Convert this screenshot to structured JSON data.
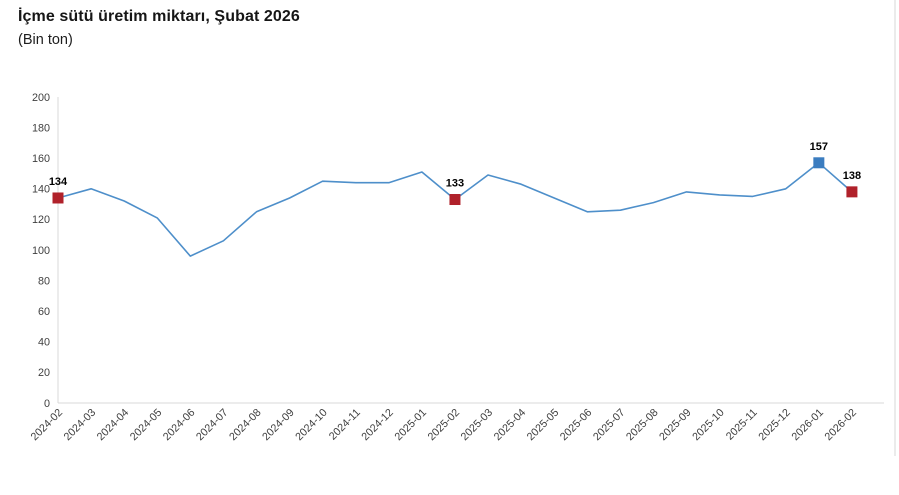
{
  "header": {
    "title": "İçme sütü üretim miktarı, Şubat 2026",
    "subtitle": "(Bin ton)"
  },
  "chart_data": {
    "type": "line",
    "title": "İçme sütü üretim miktarı, Şubat 2026",
    "subtitle": "(Bin ton)",
    "x": [
      "2024-02",
      "2024-03",
      "2024-04",
      "2024-05",
      "2024-06",
      "2024-07",
      "2024-08",
      "2024-09",
      "2024-10",
      "2024-11",
      "2024-12",
      "2025-01",
      "2025-02",
      "2025-03",
      "2025-04",
      "2025-05",
      "2025-06",
      "2025-07",
      "2025-08",
      "2025-09",
      "2025-10",
      "2025-11",
      "2025-12",
      "2026-01",
      "2026-02"
    ],
    "series": [
      {
        "name": "İçme sütü üretim miktarı (Bin ton)",
        "values": [
          134,
          140,
          132,
          121,
          96,
          106,
          125,
          134,
          145,
          144,
          144,
          151,
          133,
          149,
          143,
          134,
          125,
          126,
          131,
          138,
          136,
          135,
          140,
          157,
          138
        ]
      }
    ],
    "ylim": [
      0,
      200
    ],
    "ytick_step": 20,
    "grid": false,
    "legend_position": "none",
    "annotated_points": [
      {
        "x": "2024-02",
        "value": 134,
        "label": "134",
        "marker_color": "#b0212a"
      },
      {
        "x": "2025-02",
        "value": 133,
        "label": "133",
        "marker_color": "#b0212a"
      },
      {
        "x": "2026-01",
        "value": 157,
        "label": "157",
        "marker_color": "#3b7dc0"
      },
      {
        "x": "2026-02",
        "value": 138,
        "label": "138",
        "marker_color": "#b0212a"
      }
    ],
    "colors": {
      "line": "#4e8fca",
      "marker_red": "#b0212a",
      "marker_blue": "#3b7dc0",
      "axis": "#d9d9d9",
      "tick_label": "#3f3f3f"
    }
  }
}
